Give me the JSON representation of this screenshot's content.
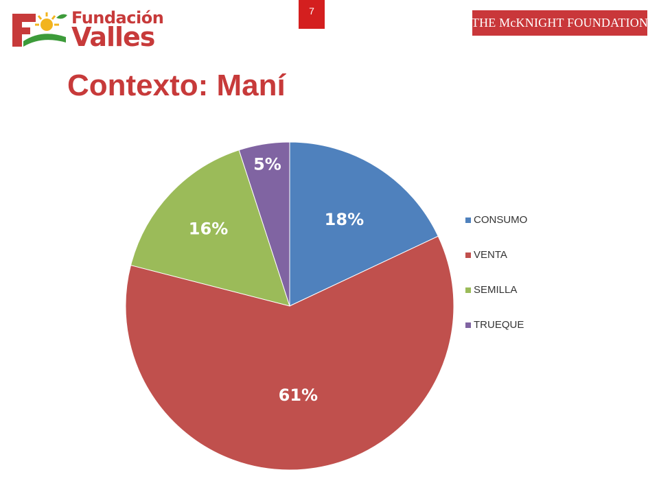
{
  "header": {
    "logo_left": {
      "line1": "Fundación",
      "line2": "Valles"
    },
    "page_number": "7",
    "logo_right": "THE McKNIGHT FOUNDATION"
  },
  "title": "Contexto: Maní",
  "chart_data": {
    "type": "pie",
    "title": "",
    "categories": [
      "CONSUMO",
      "VENTA",
      "SEMILLA",
      "TRUEQUE"
    ],
    "values": [
      18,
      61,
      16,
      5
    ],
    "labels": [
      "18%",
      "61%",
      "16%",
      "5%"
    ],
    "colors": [
      "#4f81bd",
      "#c0504d",
      "#9bbb59",
      "#8064a2"
    ],
    "label_colors": [
      "#ffffff",
      "#ffffff",
      "#ffffff",
      "#ffffff"
    ],
    "start_angle_deg": 0,
    "direction": "clockwise",
    "legend": "right"
  }
}
